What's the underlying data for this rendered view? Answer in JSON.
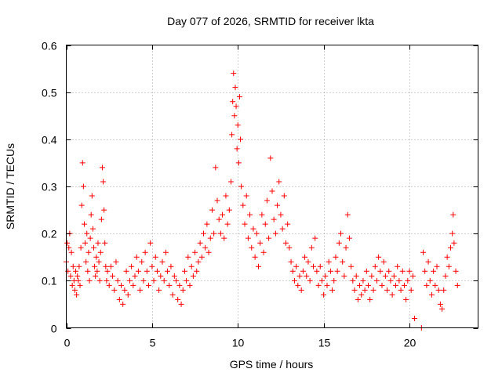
{
  "chart_data": {
    "type": "scatter",
    "title": "Day 077 of 2026, SRMTID for receiver lkta",
    "xlabel": "GPS time / hours",
    "ylabel": "SRMTID / TECUs",
    "xlim": [
      0,
      24
    ],
    "ylim": [
      0,
      0.6
    ],
    "x_ticks": [
      0,
      5,
      10,
      15,
      20
    ],
    "y_ticks": [
      0,
      0.1,
      0.2,
      0.3,
      0.4,
      0.5,
      0.6
    ],
    "x_tick_labels": [
      "0",
      "5",
      "10",
      "15",
      "20"
    ],
    "y_tick_labels": [
      "0",
      "0.1",
      "0.2",
      "0.3",
      "0.4",
      "0.5",
      "0.6"
    ],
    "grid": true,
    "marker": "+",
    "color": "#ff0000",
    "series": [
      {
        "name": "SRMTID",
        "points": [
          [
            0.0,
            0.14
          ],
          [
            0.05,
            0.18
          ],
          [
            0.1,
            0.12
          ],
          [
            0.15,
            0.17
          ],
          [
            0.2,
            0.2
          ],
          [
            0.25,
            0.11
          ],
          [
            0.3,
            0.16
          ],
          [
            0.35,
            0.09
          ],
          [
            0.4,
            0.13
          ],
          [
            0.45,
            0.1
          ],
          [
            0.5,
            0.08
          ],
          [
            0.55,
            0.12
          ],
          [
            0.6,
            0.07
          ],
          [
            0.65,
            0.11
          ],
          [
            0.7,
            0.1
          ],
          [
            0.75,
            0.13
          ],
          [
            0.8,
            0.09
          ],
          [
            0.85,
            0.17
          ],
          [
            0.9,
            0.26
          ],
          [
            0.95,
            0.35
          ],
          [
            1.0,
            0.3
          ],
          [
            1.05,
            0.22
          ],
          [
            1.1,
            0.18
          ],
          [
            1.15,
            0.14
          ],
          [
            1.2,
            0.2
          ],
          [
            1.25,
            0.12
          ],
          [
            1.3,
            0.16
          ],
          [
            1.35,
            0.1
          ],
          [
            1.4,
            0.19
          ],
          [
            1.45,
            0.24
          ],
          [
            1.5,
            0.28
          ],
          [
            1.55,
            0.21
          ],
          [
            1.6,
            0.17
          ],
          [
            1.65,
            0.13
          ],
          [
            1.7,
            0.11
          ],
          [
            1.75,
            0.15
          ],
          [
            1.8,
            0.12
          ],
          [
            1.85,
            0.18
          ],
          [
            1.9,
            0.14
          ],
          [
            1.95,
            0.1
          ],
          [
            2.0,
            0.16
          ],
          [
            2.05,
            0.23
          ],
          [
            2.1,
            0.34
          ],
          [
            2.15,
            0.31
          ],
          [
            2.2,
            0.25
          ],
          [
            2.25,
            0.18
          ],
          [
            2.3,
            0.13
          ],
          [
            2.35,
            0.1
          ],
          [
            2.4,
            0.12
          ],
          [
            2.5,
            0.09
          ],
          [
            2.6,
            0.13
          ],
          [
            2.7,
            0.11
          ],
          [
            2.8,
            0.08
          ],
          [
            2.9,
            0.14
          ],
          [
            3.0,
            0.1
          ],
          [
            3.1,
            0.06
          ],
          [
            3.2,
            0.09
          ],
          [
            3.3,
            0.05
          ],
          [
            3.4,
            0.08
          ],
          [
            3.5,
            0.12
          ],
          [
            3.6,
            0.07
          ],
          [
            3.7,
            0.1
          ],
          [
            3.8,
            0.13
          ],
          [
            3.9,
            0.09
          ],
          [
            4.0,
            0.11
          ],
          [
            4.1,
            0.15
          ],
          [
            4.2,
            0.12
          ],
          [
            4.3,
            0.08
          ],
          [
            4.4,
            0.14
          ],
          [
            4.5,
            0.1
          ],
          [
            4.6,
            0.16
          ],
          [
            4.7,
            0.12
          ],
          [
            4.8,
            0.09
          ],
          [
            4.9,
            0.18
          ],
          [
            5.0,
            0.13
          ],
          [
            5.1,
            0.1
          ],
          [
            5.2,
            0.15
          ],
          [
            5.3,
            0.12
          ],
          [
            5.4,
            0.08
          ],
          [
            5.5,
            0.11
          ],
          [
            5.6,
            0.14
          ],
          [
            5.7,
            0.1
          ],
          [
            5.8,
            0.16
          ],
          [
            5.9,
            0.12
          ],
          [
            6.0,
            0.09
          ],
          [
            6.1,
            0.13
          ],
          [
            6.2,
            0.07
          ],
          [
            6.3,
            0.11
          ],
          [
            6.4,
            0.1
          ],
          [
            6.5,
            0.06
          ],
          [
            6.6,
            0.09
          ],
          [
            6.7,
            0.05
          ],
          [
            6.8,
            0.08
          ],
          [
            6.9,
            0.12
          ],
          [
            7.0,
            0.1
          ],
          [
            7.1,
            0.15
          ],
          [
            7.2,
            0.09
          ],
          [
            7.3,
            0.13
          ],
          [
            7.4,
            0.11
          ],
          [
            7.5,
            0.16
          ],
          [
            7.6,
            0.12
          ],
          [
            7.7,
            0.14
          ],
          [
            7.8,
            0.18
          ],
          [
            7.9,
            0.15
          ],
          [
            8.0,
            0.2
          ],
          [
            8.1,
            0.17
          ],
          [
            8.2,
            0.22
          ],
          [
            8.3,
            0.16
          ],
          [
            8.4,
            0.19
          ],
          [
            8.5,
            0.25
          ],
          [
            8.6,
            0.2
          ],
          [
            8.7,
            0.34
          ],
          [
            8.8,
            0.27
          ],
          [
            8.9,
            0.23
          ],
          [
            9.0,
            0.2
          ],
          [
            9.1,
            0.24
          ],
          [
            9.2,
            0.19
          ],
          [
            9.3,
            0.28
          ],
          [
            9.4,
            0.22
          ],
          [
            9.5,
            0.25
          ],
          [
            9.6,
            0.31
          ],
          [
            9.65,
            0.41
          ],
          [
            9.7,
            0.48
          ],
          [
            9.75,
            0.54
          ],
          [
            9.8,
            0.45
          ],
          [
            9.85,
            0.51
          ],
          [
            9.9,
            0.47
          ],
          [
            9.95,
            0.38
          ],
          [
            10.0,
            0.43
          ],
          [
            10.05,
            0.35
          ],
          [
            10.1,
            0.49
          ],
          [
            10.15,
            0.4
          ],
          [
            10.2,
            0.3
          ],
          [
            10.3,
            0.26
          ],
          [
            10.4,
            0.22
          ],
          [
            10.5,
            0.28
          ],
          [
            10.6,
            0.19
          ],
          [
            10.7,
            0.24
          ],
          [
            10.8,
            0.17
          ],
          [
            10.9,
            0.21
          ],
          [
            11.0,
            0.15
          ],
          [
            11.1,
            0.2
          ],
          [
            11.2,
            0.13
          ],
          [
            11.3,
            0.18
          ],
          [
            11.4,
            0.24
          ],
          [
            11.5,
            0.16
          ],
          [
            11.6,
            0.22
          ],
          [
            11.7,
            0.27
          ],
          [
            11.8,
            0.19
          ],
          [
            11.9,
            0.36
          ],
          [
            12.0,
            0.29
          ],
          [
            12.1,
            0.23
          ],
          [
            12.2,
            0.2
          ],
          [
            12.3,
            0.26
          ],
          [
            12.4,
            0.31
          ],
          [
            12.5,
            0.24
          ],
          [
            12.6,
            0.21
          ],
          [
            12.7,
            0.28
          ],
          [
            12.8,
            0.18
          ],
          [
            12.9,
            0.22
          ],
          [
            13.0,
            0.17
          ],
          [
            13.1,
            0.14
          ],
          [
            13.2,
            0.12
          ],
          [
            13.3,
            0.1
          ],
          [
            13.4,
            0.13
          ],
          [
            13.5,
            0.09
          ],
          [
            13.6,
            0.11
          ],
          [
            13.7,
            0.08
          ],
          [
            13.8,
            0.12
          ],
          [
            13.9,
            0.15
          ],
          [
            14.0,
            0.11
          ],
          [
            14.1,
            0.14
          ],
          [
            14.2,
            0.1
          ],
          [
            14.3,
            0.17
          ],
          [
            14.4,
            0.13
          ],
          [
            14.5,
            0.19
          ],
          [
            14.6,
            0.12
          ],
          [
            14.7,
            0.09
          ],
          [
            14.8,
            0.13
          ],
          [
            14.9,
            0.1
          ],
          [
            15.0,
            0.07
          ],
          [
            15.1,
            0.11
          ],
          [
            15.2,
            0.09
          ],
          [
            15.3,
            0.14
          ],
          [
            15.4,
            0.12
          ],
          [
            15.5,
            0.08
          ],
          [
            15.6,
            0.1
          ],
          [
            15.7,
            0.15
          ],
          [
            15.8,
            0.12
          ],
          [
            15.9,
            0.18
          ],
          [
            16.0,
            0.2
          ],
          [
            16.1,
            0.14
          ],
          [
            16.2,
            0.11
          ],
          [
            16.3,
            0.17
          ],
          [
            16.4,
            0.24
          ],
          [
            16.5,
            0.19
          ],
          [
            16.6,
            0.13
          ],
          [
            16.7,
            0.1
          ],
          [
            16.8,
            0.08
          ],
          [
            16.9,
            0.11
          ],
          [
            17.0,
            0.06
          ],
          [
            17.1,
            0.09
          ],
          [
            17.2,
            0.07
          ],
          [
            17.3,
            0.1
          ],
          [
            17.4,
            0.08
          ],
          [
            17.5,
            0.12
          ],
          [
            17.6,
            0.09
          ],
          [
            17.7,
            0.06
          ],
          [
            17.8,
            0.11
          ],
          [
            17.9,
            0.08
          ],
          [
            18.0,
            0.13
          ],
          [
            18.1,
            0.1
          ],
          [
            18.2,
            0.15
          ],
          [
            18.3,
            0.12
          ],
          [
            18.4,
            0.09
          ],
          [
            18.5,
            0.14
          ],
          [
            18.6,
            0.11
          ],
          [
            18.7,
            0.08
          ],
          [
            18.8,
            0.12
          ],
          [
            18.9,
            0.1
          ],
          [
            19.0,
            0.07
          ],
          [
            19.1,
            0.11
          ],
          [
            19.2,
            0.09
          ],
          [
            19.3,
            0.13
          ],
          [
            19.4,
            0.1
          ],
          [
            19.5,
            0.08
          ],
          [
            19.6,
            0.12
          ],
          [
            19.7,
            0.09
          ],
          [
            19.8,
            0.06
          ],
          [
            19.9,
            0.1
          ],
          [
            20.0,
            0.12
          ],
          [
            20.1,
            0.08
          ],
          [
            20.2,
            0.11
          ],
          [
            20.3,
            0.02
          ],
          [
            20.7,
            0.0
          ],
          [
            20.8,
            0.16
          ],
          [
            20.9,
            0.12
          ],
          [
            21.0,
            0.09
          ],
          [
            21.1,
            0.14
          ],
          [
            21.2,
            0.1
          ],
          [
            21.3,
            0.07
          ],
          [
            21.4,
            0.12
          ],
          [
            21.5,
            0.09
          ],
          [
            21.6,
            0.13
          ],
          [
            21.7,
            0.08
          ],
          [
            21.8,
            0.05
          ],
          [
            21.9,
            0.04
          ],
          [
            22.0,
            0.08
          ],
          [
            22.1,
            0.11
          ],
          [
            22.2,
            0.15
          ],
          [
            22.3,
            0.13
          ],
          [
            22.4,
            0.17
          ],
          [
            22.5,
            0.2
          ],
          [
            22.55,
            0.24
          ],
          [
            22.6,
            0.18
          ],
          [
            22.7,
            0.12
          ],
          [
            22.8,
            0.09
          ]
        ]
      }
    ]
  }
}
